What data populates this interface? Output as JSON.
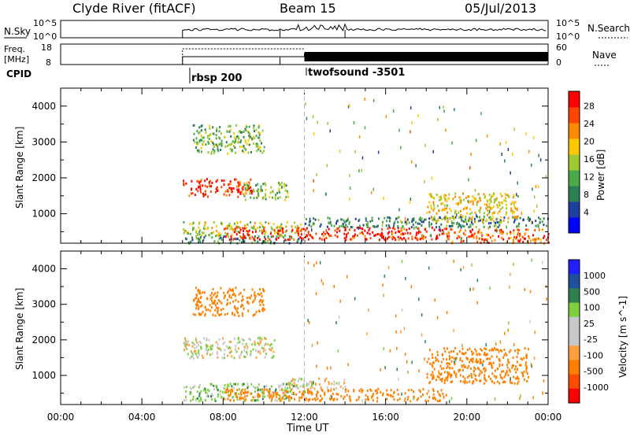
{
  "header": {
    "station": "Clyde River (fitACF)",
    "beam": "Beam 15",
    "date": "05/Jul/2013"
  },
  "status_panels": {
    "nsky_label": "N.Sky",
    "nsearch_label": "N.Search",
    "nsky_ticks": [
      "10^5",
      "10^0"
    ],
    "nsearch_ticks": [
      "10^5",
      "10^0"
    ],
    "freq_label_line1": "Freq.",
    "freq_label_line2": "[MHz]",
    "freq_ticks": [
      "18",
      "8"
    ],
    "nave_label": "Nave",
    "nave_ticks": [
      "60",
      "0"
    ],
    "cpid_label": "CPID",
    "cpid_segments": [
      {
        "start_hour": 6.0,
        "label": "rbsp 200"
      },
      {
        "start_hour": 12.0,
        "label": "twofsound -3501"
      }
    ]
  },
  "axes": {
    "ylabel": "Slant Range [km]",
    "y_ticks": [
      1000,
      2000,
      3000,
      4000
    ],
    "y_tick_labels": [
      "1000",
      "2000",
      "3000",
      "4000"
    ],
    "y_range_km": [
      180,
      4500
    ],
    "x_tick_labels": [
      "00:00",
      "04:00",
      "08:00",
      "12:00",
      "16:00",
      "20:00",
      "00:00"
    ],
    "x_ticks_hours": [
      0,
      4,
      8,
      12,
      16,
      20,
      24
    ],
    "x_range_hours": [
      0,
      24
    ],
    "xlabel": "Time UT"
  },
  "colors": {
    "power_scale": [
      "#0000ff",
      "#1f3f9f",
      "#2a7f55",
      "#4aaa4a",
      "#a0c832",
      "#ffc800",
      "#ff8c00",
      "#ff4600",
      "#ff0000"
    ],
    "velocity_scale": [
      "#ff0000",
      "#ff4a00",
      "#ff8000",
      "#ffa040",
      "#c8c8c8",
      "#c8c8c8",
      "#7fcf3f",
      "#2f7f4f",
      "#1f4f9f",
      "#2020ff"
    ]
  },
  "chart_data": [
    {
      "type": "heatmap",
      "title": "Power",
      "xlabel": "",
      "ylabel": "Slant Range [km]",
      "colorbar_label": "Power [dB]",
      "colorbar_ticks": [
        "4",
        "8",
        "12",
        "16",
        "20",
        "24",
        "28"
      ],
      "xlim_hours": [
        0,
        24
      ],
      "ylim_km": [
        180,
        4500
      ],
      "regions": [
        {
          "t0": 6.0,
          "t1": 9.4,
          "r0": 1500,
          "r1": 2000,
          "value_db": 26
        },
        {
          "t0": 9.0,
          "t1": 11.2,
          "r0": 1400,
          "r1": 1900,
          "value_db": 14
        },
        {
          "t0": 6.5,
          "t1": 10.0,
          "r0": 2700,
          "r1": 3500,
          "value_db": 13
        },
        {
          "t0": 6.0,
          "t1": 11.8,
          "r0": 400,
          "r1": 800,
          "value_db": 16
        },
        {
          "t0": 6.0,
          "t1": 12.0,
          "r0": 200,
          "r1": 400,
          "value_db": 10
        },
        {
          "t0": 8.0,
          "t1": 19.0,
          "r0": 300,
          "r1": 650,
          "value_db": 27
        },
        {
          "t0": 12.0,
          "t1": 24.0,
          "r0": 650,
          "r1": 950,
          "value_db": 9
        },
        {
          "t0": 18.0,
          "t1": 22.5,
          "r0": 800,
          "r1": 1600,
          "value_db": 18
        },
        {
          "t0": 19.0,
          "t1": 24.0,
          "r0": 200,
          "r1": 600,
          "value_db": 24
        }
      ]
    },
    {
      "type": "heatmap",
      "title": "Velocity",
      "xlabel": "Time UT",
      "ylabel": "Slant Range [km]",
      "colorbar_label": "Velocity [m s^-1]",
      "colorbar_ticks": [
        "1000",
        "500",
        "100",
        "25",
        "-25",
        "-100",
        "-500",
        "-1000"
      ],
      "xlim_hours": [
        0,
        24
      ],
      "ylim_km": [
        180,
        4500
      ],
      "regions": [
        {
          "t0": 6.0,
          "t1": 10.5,
          "r0": 1500,
          "r1": 2100,
          "value_ms": 0
        },
        {
          "t0": 6.5,
          "t1": 10.0,
          "r0": 2700,
          "r1": 3500,
          "value_ms": -300
        },
        {
          "t0": 6.0,
          "t1": 11.5,
          "r0": 300,
          "r1": 800,
          "value_ms": 60
        },
        {
          "t0": 8.0,
          "t1": 19.0,
          "r0": 300,
          "r1": 650,
          "value_ms": -150
        },
        {
          "t0": 11.0,
          "t1": 14.0,
          "r0": 650,
          "r1": 950,
          "value_ms": 0
        },
        {
          "t0": 18.0,
          "t1": 23.0,
          "r0": 800,
          "r1": 1800,
          "value_ms": -200
        }
      ]
    }
  ]
}
